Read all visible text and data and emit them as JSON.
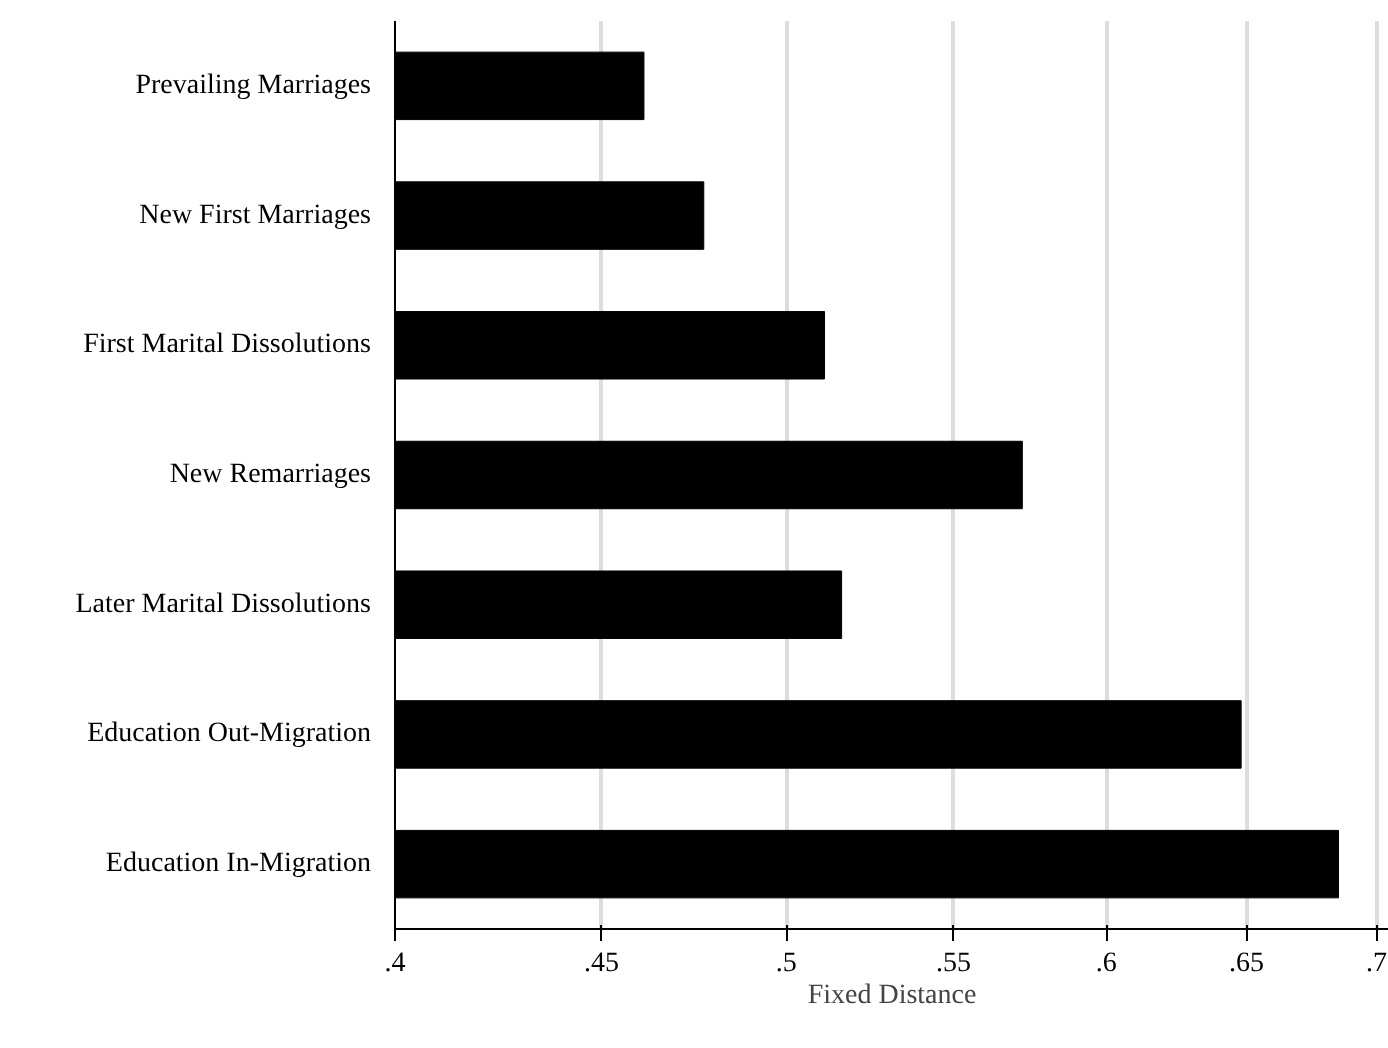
{
  "chart_data": {
    "type": "bar",
    "orientation": "horizontal",
    "xlabel": "Fixed Distance",
    "categories": [
      "Prevailing Marriages",
      "New First Marriages",
      "First Marital Dissolutions",
      "New Remarriages",
      "Later Marital Dissolutions",
      "Education Out-Migration",
      "Education In-Migration"
    ],
    "values": [
      0.461,
      0.477,
      0.511,
      0.572,
      0.516,
      0.648,
      0.685
    ],
    "color": "#000000",
    "log": "x",
    "xlim": [
      0.4,
      0.705
    ],
    "xticks": [
      {
        "value": 0.4,
        "label": ".4"
      },
      {
        "value": 0.45,
        "label": ".45"
      },
      {
        "value": 0.5,
        "label": ".5"
      },
      {
        "value": 0.55,
        "label": ".55"
      },
      {
        "value": 0.6,
        "label": ".6"
      },
      {
        "value": 0.65,
        "label": ".65"
      },
      {
        "value": 0.7,
        "label": ".7"
      }
    ],
    "grid": "x"
  }
}
